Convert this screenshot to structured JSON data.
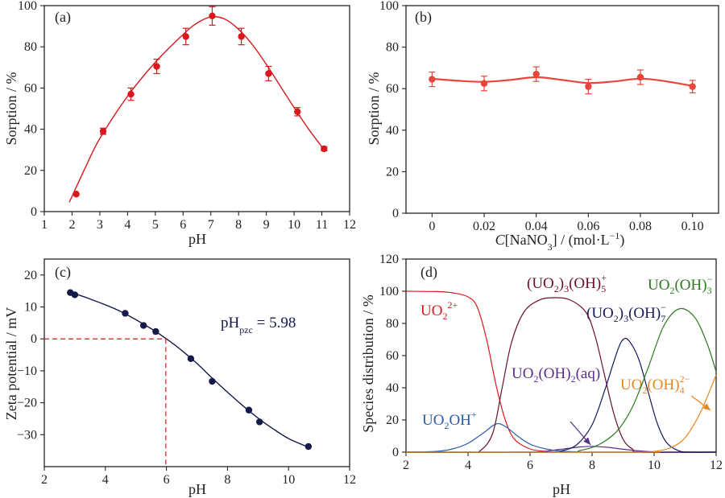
{
  "chart_data": [
    {
      "panel": "(a)",
      "type": "scatter",
      "xlabel": "pH",
      "ylabel": "Sorption / %",
      "xlim": [
        1,
        12
      ],
      "ylim": [
        0,
        100
      ],
      "xticks": [
        "1",
        "2",
        "3",
        "4",
        "5",
        "6",
        "7",
        "8",
        "9",
        "10",
        "11",
        "12"
      ],
      "yticks": [
        "0",
        "20",
        "40",
        "60",
        "80",
        "100"
      ],
      "color": "#d7191c",
      "series": [
        {
          "x": [
            2.15,
            3.12,
            4.12,
            5.05,
            6.1,
            7.05,
            8.1,
            9.08,
            10.12,
            11.08
          ],
          "y": [
            8.5,
            39,
            57,
            70.5,
            85,
            95,
            85,
            67,
            48.5,
            30.5
          ],
          "error": [
            0,
            1.5,
            3,
            3.5,
            4,
            4.5,
            4,
            3.5,
            2,
            1
          ],
          "fit": [
            [
              1.9,
              4.5
            ],
            [
              2.5,
              22
            ],
            [
              3,
              35.5
            ],
            [
              4,
              56
            ],
            [
              5,
              72.5
            ],
            [
              6,
              86
            ],
            [
              6.5,
              91.5
            ],
            [
              7,
              94.5
            ],
            [
              7.5,
              93.5
            ],
            [
              8,
              88.5
            ],
            [
              8.5,
              81
            ],
            [
              9,
              71.5
            ],
            [
              9.5,
              61
            ],
            [
              10,
              50.5
            ],
            [
              10.5,
              40.5
            ],
            [
              11,
              31.5
            ],
            [
              11.1,
              30
            ]
          ]
        }
      ]
    },
    {
      "panel": "(b)",
      "type": "scatter",
      "xlabel_italic": "C",
      "xlabel_main": "[NaNO",
      "xlabel_sub": "3",
      "xlabel_tail": "] / (mol·L",
      "xlabel_sup": "−1",
      "xlabel_end": ")",
      "ylabel": "Sorption / %",
      "xlim": [
        -0.01,
        0.11
      ],
      "ylim": [
        0,
        100
      ],
      "xticks": [
        "0",
        "0.02",
        "0.04",
        "0.06",
        "0.08",
        "0.10"
      ],
      "xtick_values": [
        0,
        0.02,
        0.04,
        0.06,
        0.08,
        0.1
      ],
      "yticks": [
        "0",
        "20",
        "40",
        "60",
        "80",
        "100"
      ],
      "color": "#e8453c",
      "series": [
        {
          "x": [
            0,
            0.02,
            0.04,
            0.06,
            0.08,
            0.1
          ],
          "y": [
            64.5,
            62.5,
            67,
            61,
            65.5,
            61
          ],
          "error": [
            3.5,
            3.5,
            3.5,
            3.5,
            3.5,
            3
          ],
          "fit": [
            [
              0,
              64.8
            ],
            [
              0.01,
              63.8
            ],
            [
              0.02,
              63.3
            ],
            [
              0.03,
              64.2
            ],
            [
              0.04,
              65.5
            ],
            [
              0.05,
              64.2
            ],
            [
              0.06,
              62.7
            ],
            [
              0.07,
              63.5
            ],
            [
              0.08,
              64.8
            ],
            [
              0.09,
              63.5
            ],
            [
              0.1,
              61.3
            ]
          ]
        }
      ]
    },
    {
      "panel": "(c)",
      "type": "scatter",
      "xlabel": "pH",
      "ylabel": "Zeta potential / mV",
      "xlim": [
        2,
        12
      ],
      "ylim": [
        -40,
        25
      ],
      "xticks": [
        "2",
        "4",
        "6",
        "8",
        "10",
        "12"
      ],
      "xtick_values": [
        2,
        4,
        6,
        8,
        10,
        12
      ],
      "yticks": [
        "−30",
        "−20",
        "−10",
        "0",
        "10",
        "20"
      ],
      "ytick_values": [
        -30,
        -20,
        -10,
        0,
        10,
        20
      ],
      "color": "#141a4a",
      "series": [
        {
          "x": [
            2.85,
            3.0,
            4.65,
            5.25,
            5.65,
            6.8,
            7.5,
            8.7,
            9.05,
            10.65
          ],
          "y": [
            14.5,
            13.8,
            8,
            4.2,
            2.3,
            -6.2,
            -13.3,
            -22.3,
            -26,
            -33.7
          ],
          "fit": [
            [
              2.85,
              14.6
            ],
            [
              3.5,
              12.5
            ],
            [
              4.5,
              8.6
            ],
            [
              5.5,
              3.2
            ],
            [
              6,
              0
            ],
            [
              6.5,
              -3.6
            ],
            [
              7,
              -7.7
            ],
            [
              7.5,
              -12.3
            ],
            [
              8,
              -16.7
            ],
            [
              8.5,
              -20.9
            ],
            [
              9,
              -24.8
            ],
            [
              9.5,
              -28.2
            ],
            [
              10,
              -31.2
            ],
            [
              10.65,
              -33.9
            ]
          ]
        }
      ],
      "reference": {
        "pHpzc": 5.98,
        "color": "#d7191c"
      },
      "annotation_main": "pH",
      "annotation_sub": "pzc",
      "annotation_tail": " = 5.98"
    },
    {
      "panel": "(d)",
      "type": "line",
      "xlabel": "pH",
      "ylabel": "Species distribution / %",
      "xlim": [
        2,
        12
      ],
      "ylim": [
        0,
        120
      ],
      "xticks": [
        "2",
        "4",
        "6",
        "8",
        "10",
        "12"
      ],
      "xtick_values": [
        2,
        4,
        6,
        8,
        10,
        12
      ],
      "yticks": [
        "0",
        "20",
        "40",
        "60",
        "80",
        "100",
        "120"
      ],
      "ytick_values": [
        0,
        20,
        40,
        60,
        80,
        100,
        120
      ],
      "series": [
        {
          "label": "UO2 2+",
          "color": "#d7191c",
          "points": [
            [
              2,
              100
            ],
            [
              3,
              99.8
            ],
            [
              3.5,
              99
            ],
            [
              4,
              96.5
            ],
            [
              4.3,
              90
            ],
            [
              4.6,
              70
            ],
            [
              4.9,
              42
            ],
            [
              5.2,
              20
            ],
            [
              5.5,
              8
            ],
            [
              6,
              2
            ],
            [
              6.5,
              0.5
            ],
            [
              7,
              0
            ],
            [
              12,
              0
            ]
          ]
        },
        {
          "label": "UO2OH+",
          "color": "#2a5aa8",
          "points": [
            [
              2,
              0
            ],
            [
              3,
              0.5
            ],
            [
              3.5,
              2
            ],
            [
              4,
              5.5
            ],
            [
              4.5,
              12
            ],
            [
              4.9,
              17.5
            ],
            [
              5.2,
              16
            ],
            [
              5.6,
              10
            ],
            [
              6,
              5
            ],
            [
              6.5,
              2
            ],
            [
              7,
              0.7
            ],
            [
              7.5,
              0.2
            ],
            [
              8,
              0
            ],
            [
              12,
              0
            ]
          ]
        },
        {
          "label": "(UO2)3(OH)5+",
          "color": "#6b0f2a",
          "points": [
            [
              2,
              0
            ],
            [
              4,
              0
            ],
            [
              4.4,
              1
            ],
            [
              4.8,
              12
            ],
            [
              5.1,
              40
            ],
            [
              5.4,
              68
            ],
            [
              5.8,
              87
            ],
            [
              6.3,
              94.5
            ],
            [
              6.8,
              96
            ],
            [
              7.3,
              94.5
            ],
            [
              7.8,
              87
            ],
            [
              8.1,
              72
            ],
            [
              8.4,
              48
            ],
            [
              8.7,
              24
            ],
            [
              9,
              8
            ],
            [
              9.3,
              2
            ],
            [
              9.6,
              0
            ],
            [
              12,
              0
            ]
          ]
        },
        {
          "label": "UO2(OH)2(aq)",
          "color": "#5b2d8e",
          "points": [
            [
              2,
              0
            ],
            [
              6,
              0
            ],
            [
              6.5,
              0.6
            ],
            [
              7,
              1.8
            ],
            [
              7.6,
              3.2
            ],
            [
              8,
              3.6
            ],
            [
              8.5,
              3
            ],
            [
              9,
              1.8
            ],
            [
              9.5,
              0.8
            ],
            [
              10,
              0.2
            ],
            [
              10.5,
              0
            ],
            [
              12,
              0
            ]
          ]
        },
        {
          "label": "(UO2)3(OH)7-",
          "color": "#161a5e",
          "points": [
            [
              2,
              0
            ],
            [
              6.6,
              0
            ],
            [
              7,
              0.8
            ],
            [
              7.5,
              4.5
            ],
            [
              8,
              17
            ],
            [
              8.4,
              38
            ],
            [
              8.8,
              62
            ],
            [
              9,
              70
            ],
            [
              9.2,
              69
            ],
            [
              9.5,
              58
            ],
            [
              9.8,
              38
            ],
            [
              10.1,
              18
            ],
            [
              10.4,
              6
            ],
            [
              10.8,
              0.8
            ],
            [
              11.2,
              0
            ],
            [
              12,
              0
            ]
          ]
        },
        {
          "label": "UO2(OH)3-",
          "color": "#2b7a1f",
          "points": [
            [
              2,
              0
            ],
            [
              7,
              0
            ],
            [
              7.6,
              1
            ],
            [
              8.2,
              4.5
            ],
            [
              8.8,
              13
            ],
            [
              9.3,
              28
            ],
            [
              9.8,
              52
            ],
            [
              10.3,
              78
            ],
            [
              10.8,
              89
            ],
            [
              11.3,
              84
            ],
            [
              11.7,
              68
            ],
            [
              12,
              50
            ]
          ]
        },
        {
          "label": "UO2(OH)4 2-",
          "color": "#e8861f",
          "points": [
            [
              2,
              0
            ],
            [
              9.5,
              0
            ],
            [
              10,
              0.5
            ],
            [
              10.5,
              2.5
            ],
            [
              11,
              9
            ],
            [
              11.5,
              25
            ],
            [
              12,
              48
            ]
          ]
        }
      ],
      "labels": [
        {
          "base": "UO",
          "sub1": "2",
          "tail": "",
          "sub2": "",
          "sup": "2+",
          "color": "#d7191c"
        },
        {
          "base": "UO",
          "sub1": "2",
          "tail": "OH",
          "sub2": "",
          "sup": "+",
          "color": "#2a5aa8"
        },
        {
          "base": "(UO",
          "sub1": "2",
          "tail": ")",
          "sub2": "3",
          "tail2": "(OH)",
          "sub3": "5",
          "sup": "+",
          "color": "#6b0f2a"
        },
        {
          "base": "UO",
          "sub1": "2",
          "tail": "(OH)",
          "sub2": "2",
          "tail2": "(aq)",
          "color": "#5b2d8e"
        },
        {
          "base": "(UO",
          "sub1": "2",
          "tail": ")",
          "sub2": "3",
          "tail2": "(OH)",
          "sub3": "7",
          "sup": "−",
          "color": "#161a5e"
        },
        {
          "base": "UO",
          "sub1": "2",
          "tail": "(OH)",
          "sub2": "3",
          "sup": "−",
          "color": "#2b7a1f"
        },
        {
          "base": "UO",
          "sub1": "2",
          "tail": "(OH)",
          "sub2": "4",
          "sup": "2−",
          "color": "#e8861f"
        }
      ]
    }
  ]
}
